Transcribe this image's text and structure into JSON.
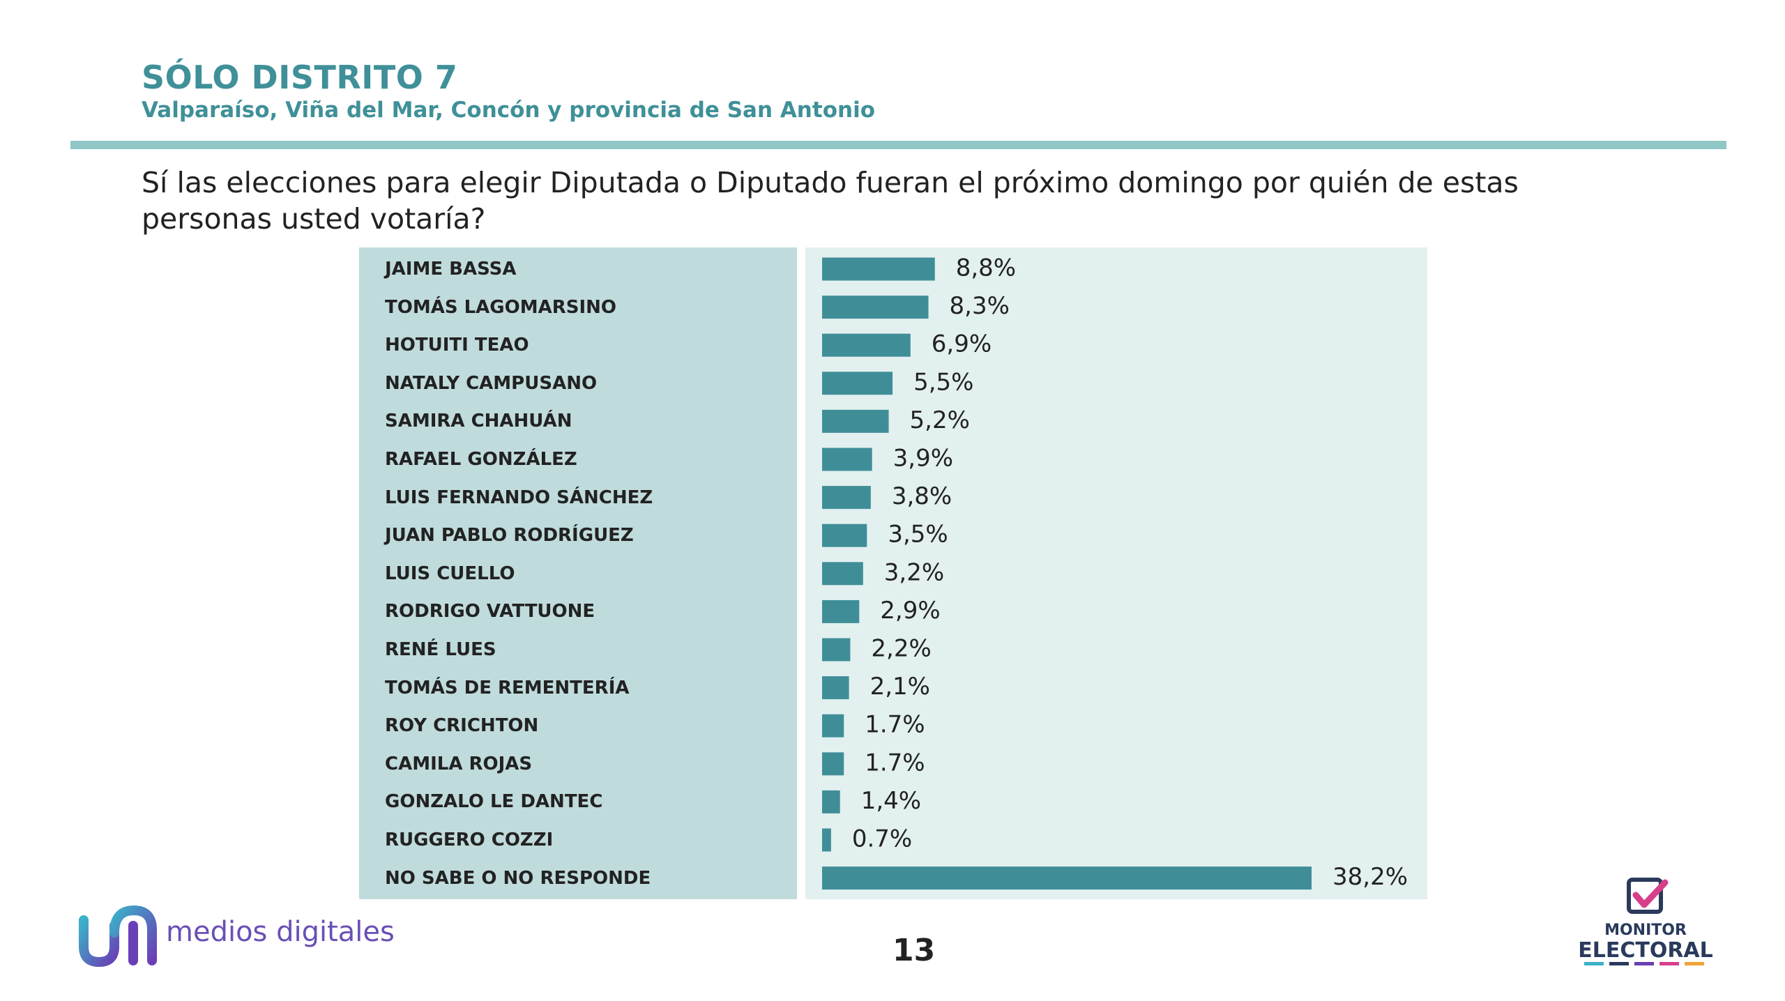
{
  "header": {
    "title": "SÓLO DISTRITO 7",
    "subtitle": "Valparaíso, Viña del Mar, Concón y provincia de San Antonio"
  },
  "question": "Sí las elecciones para elegir Diputada o Diputado fueran el próximo domingo por quién de estas personas usted votaría?",
  "colors": {
    "accent": "#3f9098",
    "bar": "#3f8e97",
    "label_panel": "#c0dbdc",
    "plot_panel": "#e3f0f0",
    "rule": "#8fc6c6"
  },
  "chart_data": {
    "type": "bar",
    "orientation": "horizontal",
    "categories": [
      "JAIME BASSA",
      "TOMÁS LAGOMARSINO",
      "HOTUITI TEAO",
      "NATALY CAMPUSANO",
      "SAMIRA CHAHUÁN",
      "RAFAEL GONZÁLEZ",
      "LUIS FERNANDO SÁNCHEZ",
      "JUAN PABLO RODRÍGUEZ",
      "LUIS CUELLO",
      "RODRIGO VATTUONE",
      "RENÉ LUES",
      "TOMÁS DE REMENTERÍA",
      "ROY CRICHTON",
      "CAMILA ROJAS",
      "GONZALO LE DANTEC",
      "RUGGERO COZZI",
      "NO SABE O NO RESPONDE"
    ],
    "values": [
      8.8,
      8.3,
      6.9,
      5.5,
      5.2,
      3.9,
      3.8,
      3.5,
      3.2,
      2.9,
      2.2,
      2.1,
      1.7,
      1.7,
      1.4,
      0.7,
      38.2
    ],
    "value_labels": [
      "8,8%",
      "8,3%",
      "6,9%",
      "5,5%",
      "5,2%",
      "3,9%",
      "3,8%",
      "3,5%",
      "3,2%",
      "2,9%",
      "2,2%",
      "2,1%",
      "1.7%",
      "1.7%",
      "1,4%",
      "0.7%",
      "38,2%"
    ],
    "unit": "%",
    "grid": false,
    "legend": "none"
  },
  "footer": {
    "left_logo_text": "medios digitales",
    "left_logo_icon": "medios-digitales-logo-icon",
    "page_number": "13",
    "right_logo_line1": "MONITOR",
    "right_logo_line2": "ELECTORAL",
    "right_logo_icon": "checkbox-check-icon"
  }
}
